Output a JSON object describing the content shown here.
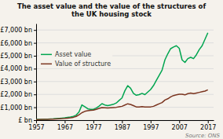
{
  "chart_data": {
    "type": "line",
    "title": "The asset value and the value of the structures of\nthe UK housing stock",
    "x": [
      1957,
      1958,
      1959,
      1960,
      1961,
      1962,
      1963,
      1964,
      1965,
      1966,
      1967,
      1968,
      1969,
      1970,
      1971,
      1972,
      1973,
      1974,
      1975,
      1976,
      1977,
      1978,
      1979,
      1980,
      1981,
      1982,
      1983,
      1984,
      1985,
      1986,
      1987,
      1988,
      1989,
      1990,
      1991,
      1992,
      1993,
      1994,
      1995,
      1996,
      1997,
      1998,
      1999,
      2000,
      2001,
      2002,
      2003,
      2004,
      2005,
      2006,
      2007,
      2008,
      2009,
      2010,
      2011,
      2012,
      2013,
      2014,
      2015,
      2016,
      2017
    ],
    "series": [
      {
        "name": "Asset value",
        "color": "#00a550",
        "values": [
          55,
          60,
          65,
          72,
          80,
          90,
          100,
          120,
          140,
          160,
          180,
          210,
          245,
          295,
          390,
          640,
          1180,
          1040,
          890,
          840,
          840,
          940,
          1090,
          1280,
          1180,
          1130,
          1180,
          1230,
          1330,
          1530,
          1720,
          2280,
          2680,
          2480,
          2080,
          1930,
          1980,
          2080,
          1980,
          2180,
          2380,
          2680,
          3080,
          3480,
          3880,
          4680,
          5150,
          5550,
          5680,
          5780,
          5580,
          4680,
          4480,
          4780,
          4880,
          4780,
          5080,
          5480,
          5780,
          6280,
          6780
        ]
      },
      {
        "name": "Value of structure",
        "color": "#7b3520",
        "values": [
          48,
          52,
          56,
          60,
          65,
          72,
          80,
          92,
          106,
          120,
          135,
          158,
          182,
          220,
          290,
          415,
          580,
          680,
          730,
          758,
          778,
          838,
          918,
          975,
          958,
          938,
          958,
          978,
          998,
          1035,
          1075,
          1170,
          1270,
          1220,
          1125,
          1028,
          1028,
          1055,
          1028,
          1028,
          1028,
          1075,
          1170,
          1270,
          1365,
          1560,
          1660,
          1810,
          1910,
          1960,
          2010,
          2010,
          1960,
          2060,
          2108,
          2060,
          2108,
          2158,
          2208,
          2258,
          2358
        ]
      }
    ],
    "xlim": [
      1957,
      2019
    ],
    "xticks": [
      1957,
      1967,
      1977,
      1987,
      1997,
      2007,
      2017
    ],
    "ylim": [
      0,
      7500
    ],
    "yticks": [
      {
        "value": 0,
        "label": "£ bn"
      },
      {
        "value": 1000,
        "label": "£1,000 bn"
      },
      {
        "value": 2000,
        "label": "£2,000 bn"
      },
      {
        "value": 3000,
        "label": "£3,000 bn"
      },
      {
        "value": 4000,
        "label": "£4,000 bn"
      },
      {
        "value": 5000,
        "label": "£5,000 bn"
      },
      {
        "value": 6000,
        "label": "£6,000 bn"
      },
      {
        "value": 7000,
        "label": "£7,000 bn"
      }
    ],
    "grid": true,
    "legend": "left",
    "annotations": [
      "Source: ONS"
    ]
  }
}
